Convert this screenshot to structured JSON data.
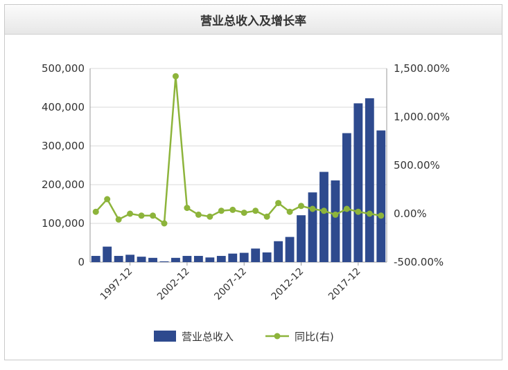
{
  "chart_data": {
    "type": "bar+line",
    "title": "营业总收入及增长率",
    "x": [
      "1994-12",
      "1995-12",
      "1996-12",
      "1997-12",
      "1998-12",
      "1999-12",
      "2000-12",
      "2001-12",
      "2002-12",
      "2003-12",
      "2004-12",
      "2005-12",
      "2006-12",
      "2007-12",
      "2008-12",
      "2009-12",
      "2010-12",
      "2011-12",
      "2012-12",
      "2013-12",
      "2014-12",
      "2015-12",
      "2016-12",
      "2017-12",
      "2018-12",
      "2019-12"
    ],
    "x_tick_labels": [
      "1997-12",
      "2002-12",
      "2007-12",
      "2012-12",
      "2017-12"
    ],
    "series": [
      {
        "name": "营业总收入",
        "kind": "bar",
        "axis": "left",
        "color": "#2e4a8e",
        "values": [
          16000,
          40000,
          16000,
          19000,
          14000,
          11000,
          2000,
          11000,
          16000,
          16000,
          12000,
          16000,
          22000,
          24000,
          35000,
          25000,
          54000,
          65000,
          121000,
          180000,
          233000,
          211000,
          333000,
          410000,
          423000,
          340000
        ]
      },
      {
        "name": "同比(右)",
        "kind": "line",
        "axis": "right",
        "color": "#8db43b",
        "values": [
          20,
          150,
          -60,
          0,
          -20,
          -20,
          -100,
          1420,
          60,
          -10,
          -30,
          30,
          40,
          10,
          30,
          -30,
          110,
          20,
          80,
          50,
          30,
          -10,
          50,
          20,
          0,
          -20
        ]
      }
    ],
    "y_left": {
      "ylim": [
        0,
        500000
      ],
      "ticks": [
        "0",
        "100,000",
        "200,000",
        "300,000",
        "400,000",
        "500,000"
      ]
    },
    "y_right": {
      "ylim": [
        -500,
        1500
      ],
      "ticks": [
        "-500.00%",
        "0.00%",
        "500.00%",
        "1,000.00%",
        "1,500.00%"
      ]
    },
    "grid": true,
    "legend": "bottom"
  }
}
